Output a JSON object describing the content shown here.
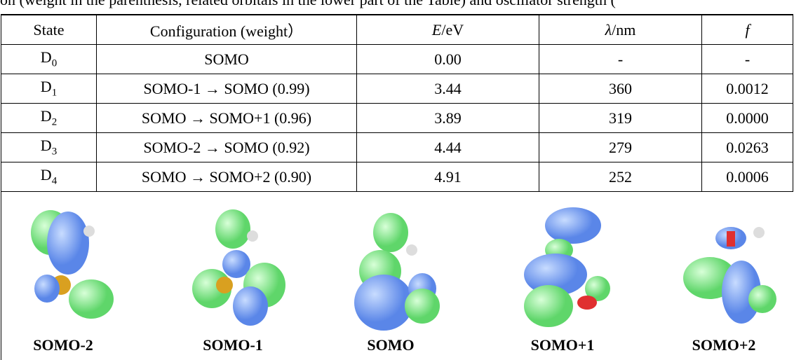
{
  "caption": "on (weight in the parenthesis, related orbitals in the lower part of the Table) and oscillator strength (",
  "table": {
    "header": {
      "state": "State",
      "config": "Configuration (weight）",
      "energy": {
        "italic": "E",
        "rest": "/eV"
      },
      "wavelength": {
        "italic": "λ",
        "rest": "/nm"
      },
      "strength": "f"
    },
    "rows": [
      {
        "state": [
          "D",
          "0"
        ],
        "config": "SOMO",
        "energy": "0.00",
        "wavelength": "-",
        "strength": "-"
      },
      {
        "state": [
          "D",
          "1"
        ],
        "config": "SOMO-1 → SOMO (0.99)",
        "energy": "3.44",
        "wavelength": "360",
        "strength": "0.0012"
      },
      {
        "state": [
          "D",
          "2"
        ],
        "config": "SOMO → SOMO+1 (0.96)",
        "energy": "3.89",
        "wavelength": "319",
        "strength": "0.0000"
      },
      {
        "state": [
          "D",
          "3"
        ],
        "config": "SOMO-2 → SOMO (0.92)",
        "energy": "4.44",
        "wavelength": "279",
        "strength": "0.0263"
      },
      {
        "state": [
          "D",
          "4"
        ],
        "config": "SOMO → SOMO+2 (0.90)",
        "energy": "4.91",
        "wavelength": "252",
        "strength": "0.0006"
      }
    ]
  },
  "orbitals": [
    "SOMO-2",
    "SOMO-1",
    "SOMO",
    "SOMO+1",
    "SOMO+2"
  ]
}
